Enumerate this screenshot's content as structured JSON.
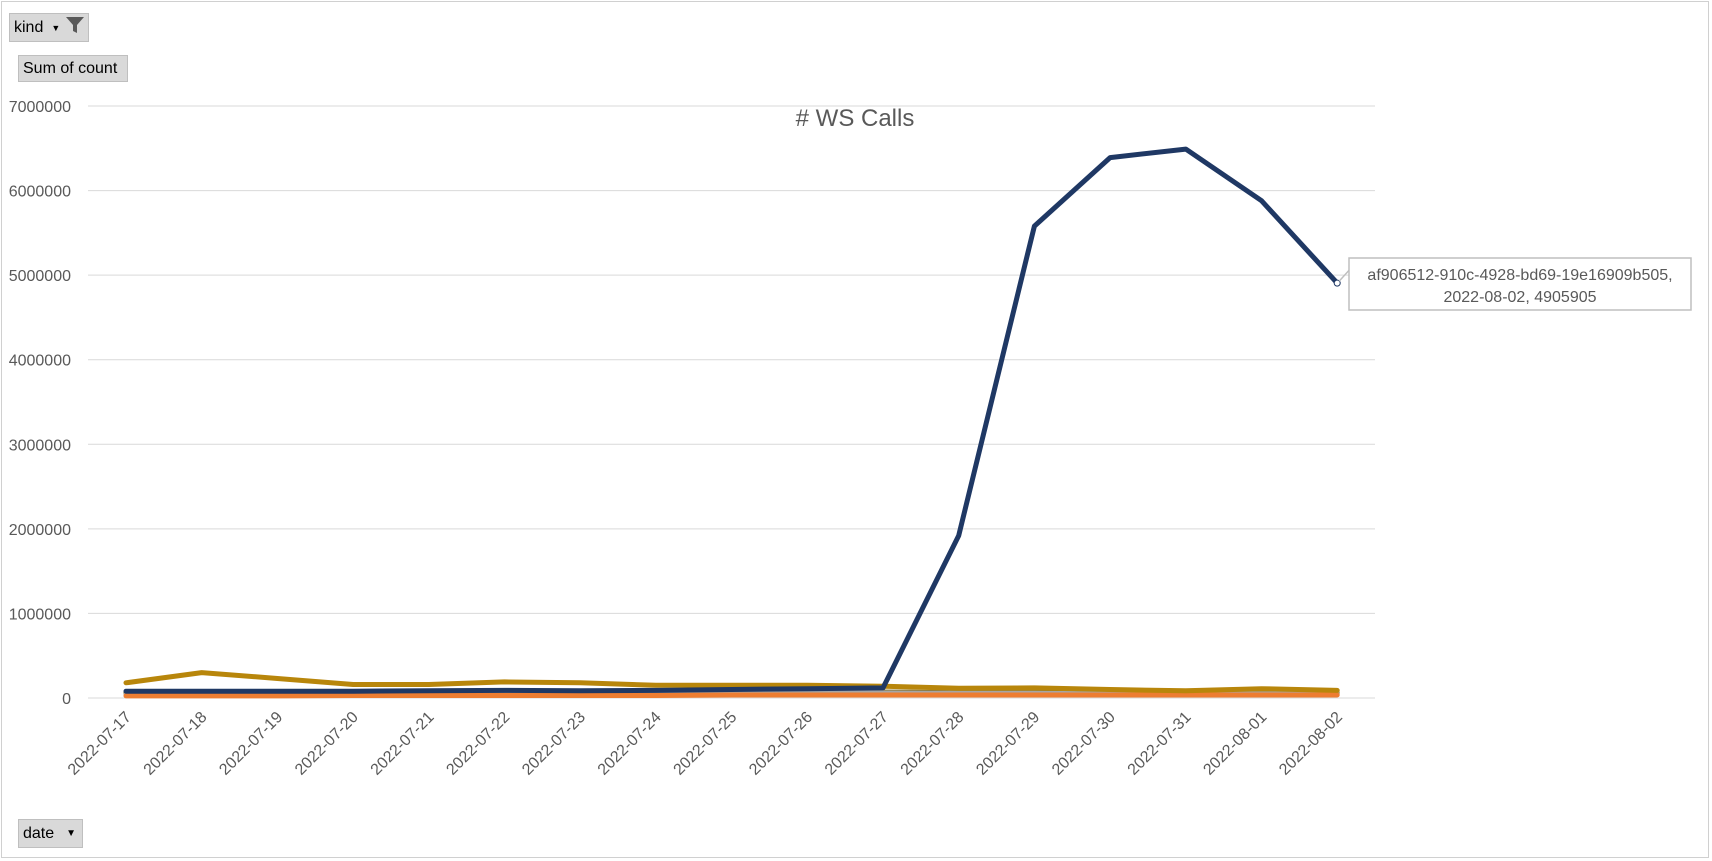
{
  "filters": {
    "kind_label": "kind",
    "value_label": "Sum of count",
    "date_label": "date"
  },
  "icons": {
    "kind_dropdown": "dropdown-arrow-icon",
    "kind_filter": "filter-funnel-icon",
    "date_dropdown": "dropdown-arrow-icon"
  },
  "chart_data": {
    "type": "line",
    "title": "# WS Calls",
    "xlabel": "",
    "ylabel": "",
    "ylim": [
      0,
      7000000
    ],
    "y_ticks": [
      0,
      1000000,
      2000000,
      3000000,
      4000000,
      5000000,
      6000000,
      7000000
    ],
    "grid": true,
    "legend": "none",
    "categories": [
      "2022-07-17",
      "2022-07-18",
      "2022-07-19",
      "2022-07-20",
      "2022-07-21",
      "2022-07-22",
      "2022-07-23",
      "2022-07-24",
      "2022-07-25",
      "2022-07-26",
      "2022-07-27",
      "2022-07-28",
      "2022-07-29",
      "2022-07-30",
      "2022-07-31",
      "2022-08-01",
      "2022-08-02"
    ],
    "series": [
      {
        "color": "#1f3864",
        "values": [
          80000,
          80000,
          80000,
          80000,
          85000,
          90000,
          85000,
          90000,
          100000,
          110000,
          120000,
          1920000,
          5580000,
          6390000,
          6490000,
          5880000,
          4905905
        ]
      },
      {
        "color": "#7f6000",
        "values": [
          60000,
          60000,
          60000,
          60000,
          60000,
          65000,
          65000,
          65000,
          70000,
          70000,
          70000,
          65000,
          60000,
          60000,
          60000,
          60000,
          60000
        ]
      },
      {
        "color": "#a5a5a5",
        "values": [
          40000,
          40000,
          45000,
          45000,
          60000,
          50000,
          45000,
          55000,
          60000,
          65000,
          60000,
          55000,
          55000,
          50000,
          50000,
          50000,
          50000
        ]
      },
      {
        "color": "#ed7d31",
        "values": [
          25000,
          25000,
          25000,
          30000,
          30000,
          30000,
          30000,
          30000,
          35000,
          35000,
          35000,
          35000,
          35000,
          35000,
          35000,
          35000,
          35000
        ]
      },
      {
        "color": "#b8860b",
        "values": [
          180000,
          300000,
          230000,
          160000,
          160000,
          190000,
          180000,
          150000,
          150000,
          150000,
          140000,
          115000,
          120000,
          100000,
          85000,
          110000,
          90000
        ]
      }
    ],
    "annotation": {
      "series_index": 0,
      "point_index": 16,
      "lines": [
        "af906512-910c-4928-bd69-19e16909b505,",
        "2022-08-02, 4905905"
      ]
    }
  }
}
